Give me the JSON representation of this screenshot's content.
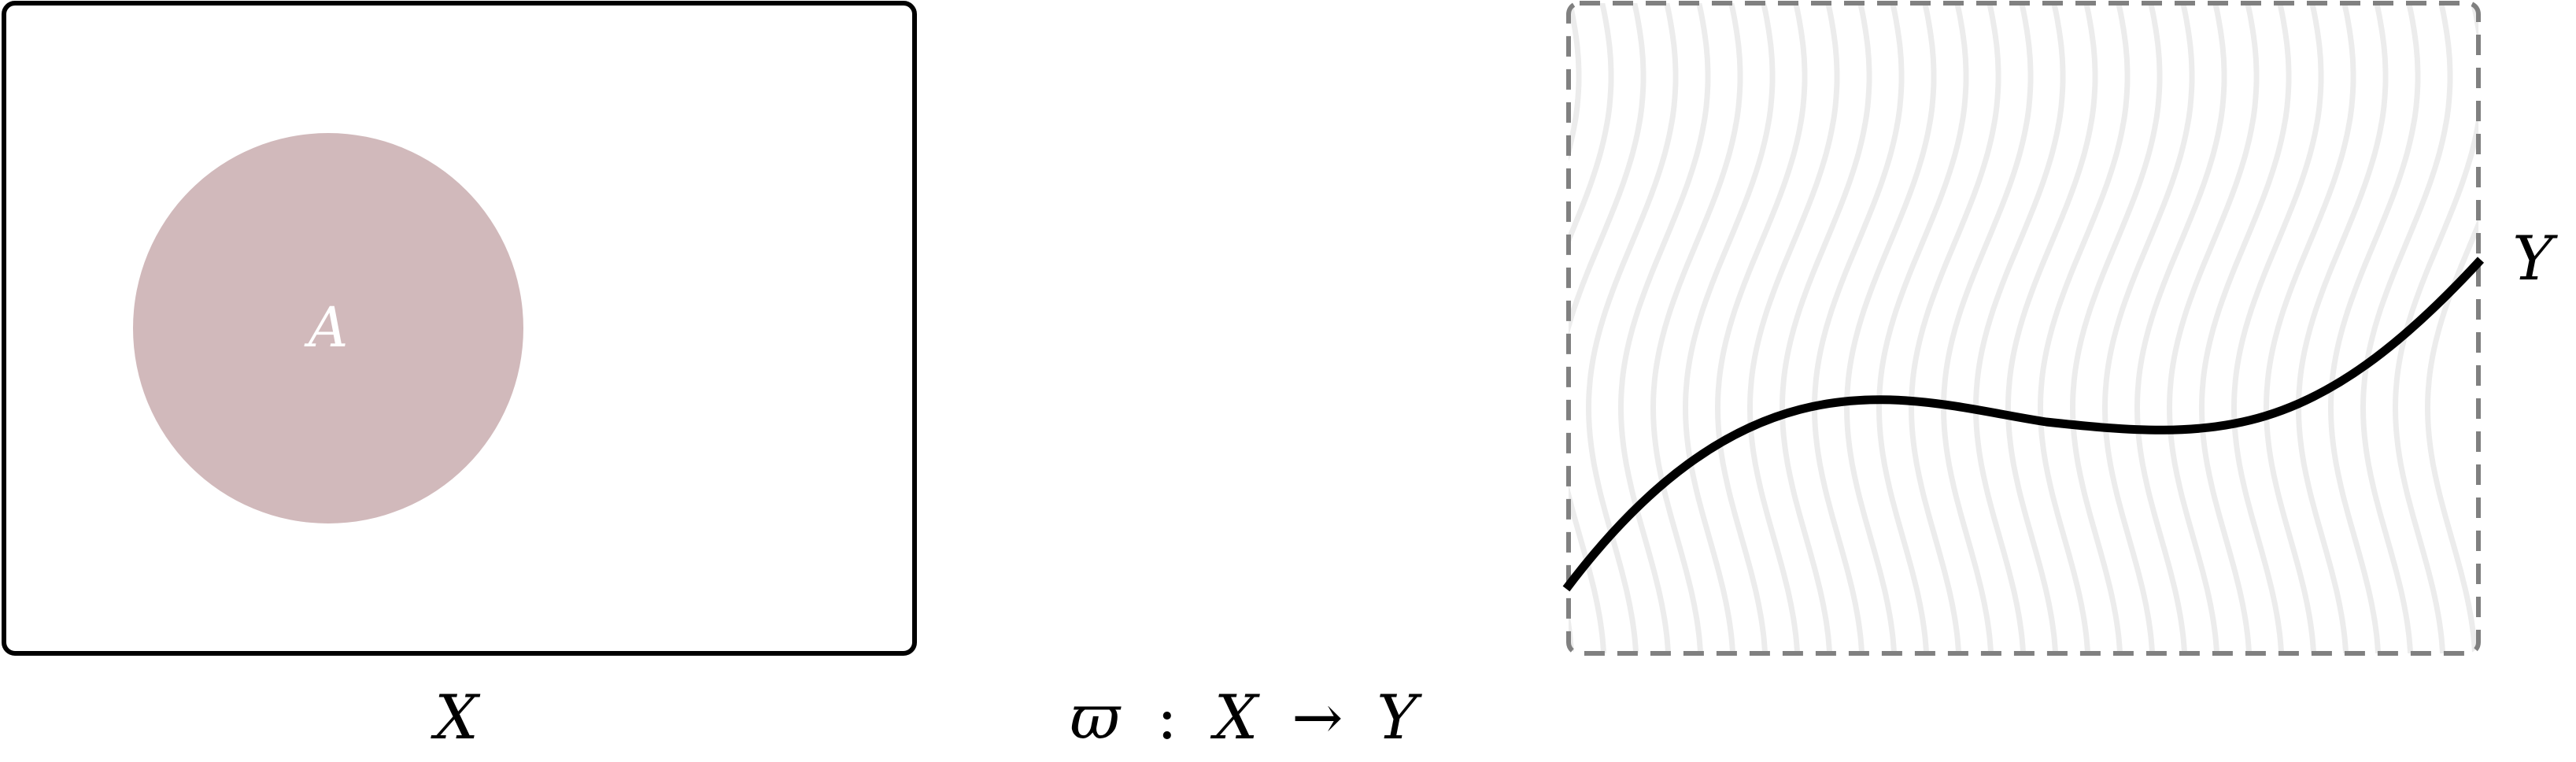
{
  "diagram": {
    "left_set": {
      "label": "X",
      "subset_label": "A",
      "subset_fill": "#d1b9bb",
      "border_color": "#000000"
    },
    "right_set": {
      "label": "Y",
      "border_color": "#808080",
      "hatch_color": "#ececec",
      "curve_color": "#000000"
    },
    "map_label": {
      "symbol": "ϖ",
      "colon": ":",
      "domain": "X",
      "arrow": "→",
      "codomain": "Y"
    }
  }
}
